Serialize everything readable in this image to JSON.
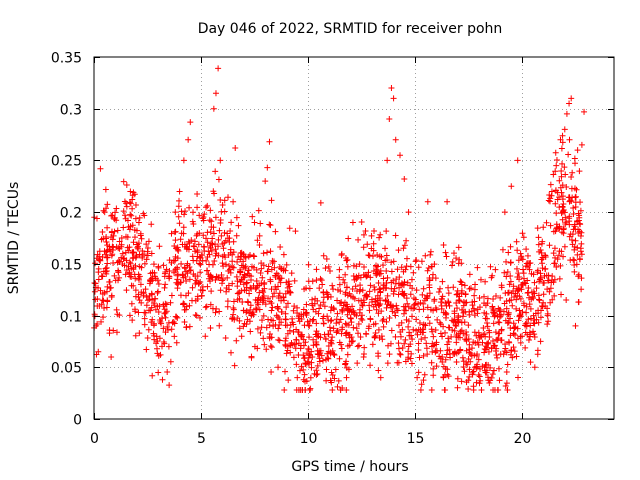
{
  "chart_data": {
    "type": "scatter",
    "title": "Day 046 of 2022, SRMTID for receiver pohn",
    "xlabel": "GPS time / hours",
    "ylabel": "SRMTID / TECUs",
    "xlim": [
      0,
      24.3
    ],
    "ylim": [
      0,
      0.35
    ],
    "xticks": [
      0,
      5,
      10,
      15,
      20
    ],
    "yticks": [
      0,
      0.05,
      0.1,
      0.15,
      0.2,
      0.25,
      0.3,
      0.35
    ],
    "xtick_labels": [
      "0",
      "5",
      "10",
      "15",
      "20"
    ],
    "ytick_labels": [
      "0",
      "0.05",
      "0.1",
      "0.15",
      "0.2",
      "0.25",
      "0.3",
      "0.35"
    ],
    "grid": true,
    "marker": "+",
    "color": "#ff0000",
    "series": [
      {
        "name": "SRMTID",
        "trend": [
          [
            0.0,
            0.12
          ],
          [
            0.5,
            0.14
          ],
          [
            1.0,
            0.145
          ],
          [
            1.5,
            0.165
          ],
          [
            2.0,
            0.15
          ],
          [
            2.5,
            0.13
          ],
          [
            3.0,
            0.1
          ],
          [
            3.5,
            0.11
          ],
          [
            4.0,
            0.15
          ],
          [
            4.5,
            0.14
          ],
          [
            5.0,
            0.155
          ],
          [
            5.5,
            0.16
          ],
          [
            6.0,
            0.15
          ],
          [
            6.5,
            0.14
          ],
          [
            7.0,
            0.13
          ],
          [
            7.5,
            0.12
          ],
          [
            8.0,
            0.125
          ],
          [
            8.5,
            0.12
          ],
          [
            9.0,
            0.11
          ],
          [
            9.5,
            0.08
          ],
          [
            10.0,
            0.07
          ],
          [
            10.5,
            0.085
          ],
          [
            11.0,
            0.09
          ],
          [
            11.5,
            0.1
          ],
          [
            12.0,
            0.1
          ],
          [
            12.5,
            0.12
          ],
          [
            13.0,
            0.125
          ],
          [
            13.5,
            0.12
          ],
          [
            14.0,
            0.12
          ],
          [
            14.5,
            0.11
          ],
          [
            15.0,
            0.1
          ],
          [
            15.5,
            0.1
          ],
          [
            16.0,
            0.095
          ],
          [
            16.5,
            0.095
          ],
          [
            17.0,
            0.09
          ],
          [
            17.5,
            0.085
          ],
          [
            18.0,
            0.075
          ],
          [
            18.5,
            0.08
          ],
          [
            19.0,
            0.09
          ],
          [
            19.5,
            0.11
          ],
          [
            20.0,
            0.12
          ],
          [
            20.5,
            0.11
          ],
          [
            21.0,
            0.14
          ],
          [
            21.5,
            0.18
          ],
          [
            22.0,
            0.21
          ],
          [
            22.5,
            0.18
          ],
          [
            22.8,
            0.17
          ]
        ],
        "points": [
          [
            0.1,
            0.09
          ],
          [
            0.2,
            0.065
          ],
          [
            0.3,
            0.242
          ],
          [
            0.5,
            0.2
          ],
          [
            0.8,
            0.06
          ],
          [
            1.3,
            0.175
          ],
          [
            1.7,
            0.22
          ],
          [
            2.1,
            0.19
          ],
          [
            2.7,
            0.16
          ],
          [
            3.0,
            0.045
          ],
          [
            3.2,
            0.038
          ],
          [
            3.5,
            0.07
          ],
          [
            3.8,
            0.2
          ],
          [
            4.0,
            0.22
          ],
          [
            4.2,
            0.25
          ],
          [
            4.4,
            0.27
          ],
          [
            4.5,
            0.287
          ],
          [
            4.8,
            0.1
          ],
          [
            5.2,
            0.08
          ],
          [
            5.6,
            0.3
          ],
          [
            5.7,
            0.315
          ],
          [
            5.8,
            0.339
          ],
          [
            5.9,
            0.25
          ],
          [
            6.1,
            0.18
          ],
          [
            6.5,
            0.21
          ],
          [
            6.6,
            0.262
          ],
          [
            6.9,
            0.08
          ],
          [
            7.5,
            0.19
          ],
          [
            8.0,
            0.23
          ],
          [
            8.1,
            0.243
          ],
          [
            8.2,
            0.268
          ],
          [
            8.6,
            0.05
          ],
          [
            9.5,
            0.04
          ],
          [
            9.8,
            0.038
          ],
          [
            10.2,
            0.06
          ],
          [
            10.6,
            0.209
          ],
          [
            11.1,
            0.045
          ],
          [
            11.6,
            0.03
          ],
          [
            11.8,
            0.04
          ],
          [
            12.1,
            0.19
          ],
          [
            12.6,
            0.06
          ],
          [
            12.9,
            0.052
          ],
          [
            13.4,
            0.04
          ],
          [
            13.6,
            0.165
          ],
          [
            13.7,
            0.25
          ],
          [
            13.8,
            0.29
          ],
          [
            13.9,
            0.32
          ],
          [
            14.0,
            0.31
          ],
          [
            14.1,
            0.27
          ],
          [
            14.3,
            0.255
          ],
          [
            14.5,
            0.232
          ],
          [
            14.7,
            0.2
          ],
          [
            15.1,
            0.04
          ],
          [
            15.6,
            0.21
          ],
          [
            16.5,
            0.21
          ],
          [
            17.8,
            0.05
          ],
          [
            18.3,
            0.045
          ],
          [
            19.2,
            0.2
          ],
          [
            19.5,
            0.225
          ],
          [
            19.8,
            0.25
          ],
          [
            20.0,
            0.08
          ],
          [
            20.4,
            0.055
          ],
          [
            20.6,
            0.05
          ],
          [
            21.2,
            0.1
          ],
          [
            21.4,
            0.22
          ],
          [
            21.6,
            0.245
          ],
          [
            21.8,
            0.27
          ],
          [
            22.0,
            0.28
          ],
          [
            22.1,
            0.295
          ],
          [
            22.2,
            0.305
          ],
          [
            22.3,
            0.31
          ],
          [
            22.5,
            0.09
          ],
          [
            22.6,
            0.26
          ],
          [
            22.8,
            0.265
          ],
          [
            22.9,
            0.297
          ]
        ]
      }
    ]
  }
}
